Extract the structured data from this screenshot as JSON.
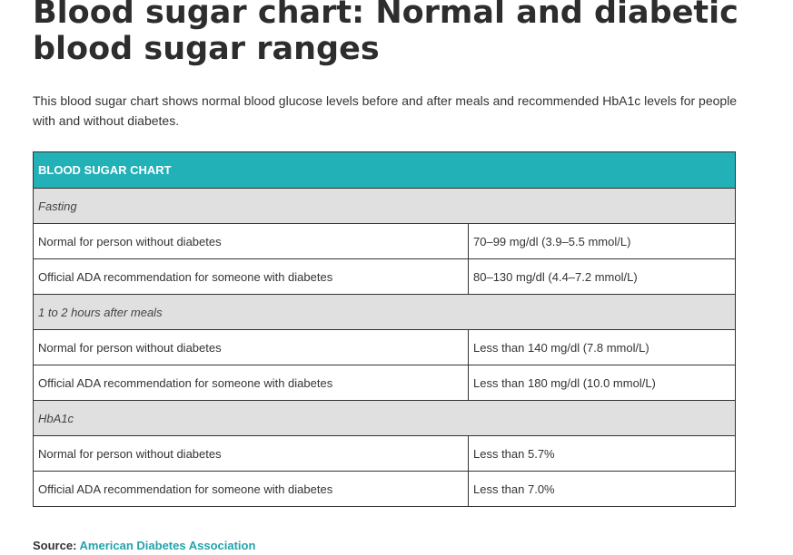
{
  "title": "Blood sugar chart: Normal and diabetic blood sugar ranges",
  "intro": "This blood sugar chart shows normal blood glucose levels before and after meals and recommended HbA1c levels for people with and without diabetes.",
  "table": {
    "header": "BLOOD SUGAR CHART",
    "header_color": "#23b1b8",
    "sections": [
      {
        "name": "Fasting",
        "rows": [
          {
            "label": "Normal for person without diabetes",
            "value": "70–99 mg/dl (3.9–5.5 mmol/L)"
          },
          {
            "label": "Official ADA recommendation for someone with diabetes",
            "value": "80–130 mg/dl (4.4–7.2 mmol/L)"
          }
        ]
      },
      {
        "name": "1 to 2 hours after meals",
        "rows": [
          {
            "label": "Normal for person without diabetes",
            "value": "Less than 140 mg/dl (7.8 mmol/L)"
          },
          {
            "label": "Official ADA recommendation for someone with diabetes",
            "value": "Less than 180 mg/dl (10.0 mmol/L)"
          }
        ]
      },
      {
        "name": "HbA1c",
        "rows": [
          {
            "label": "Normal for person without diabetes",
            "value": "Less than 5.7%"
          },
          {
            "label": "Official ADA recommendation for someone with diabetes",
            "value": "Less than 7.0%"
          }
        ]
      }
    ]
  },
  "source": {
    "label": "Source:",
    "link_text": "American Diabetes Association",
    "link_color": "#23a3ab"
  }
}
